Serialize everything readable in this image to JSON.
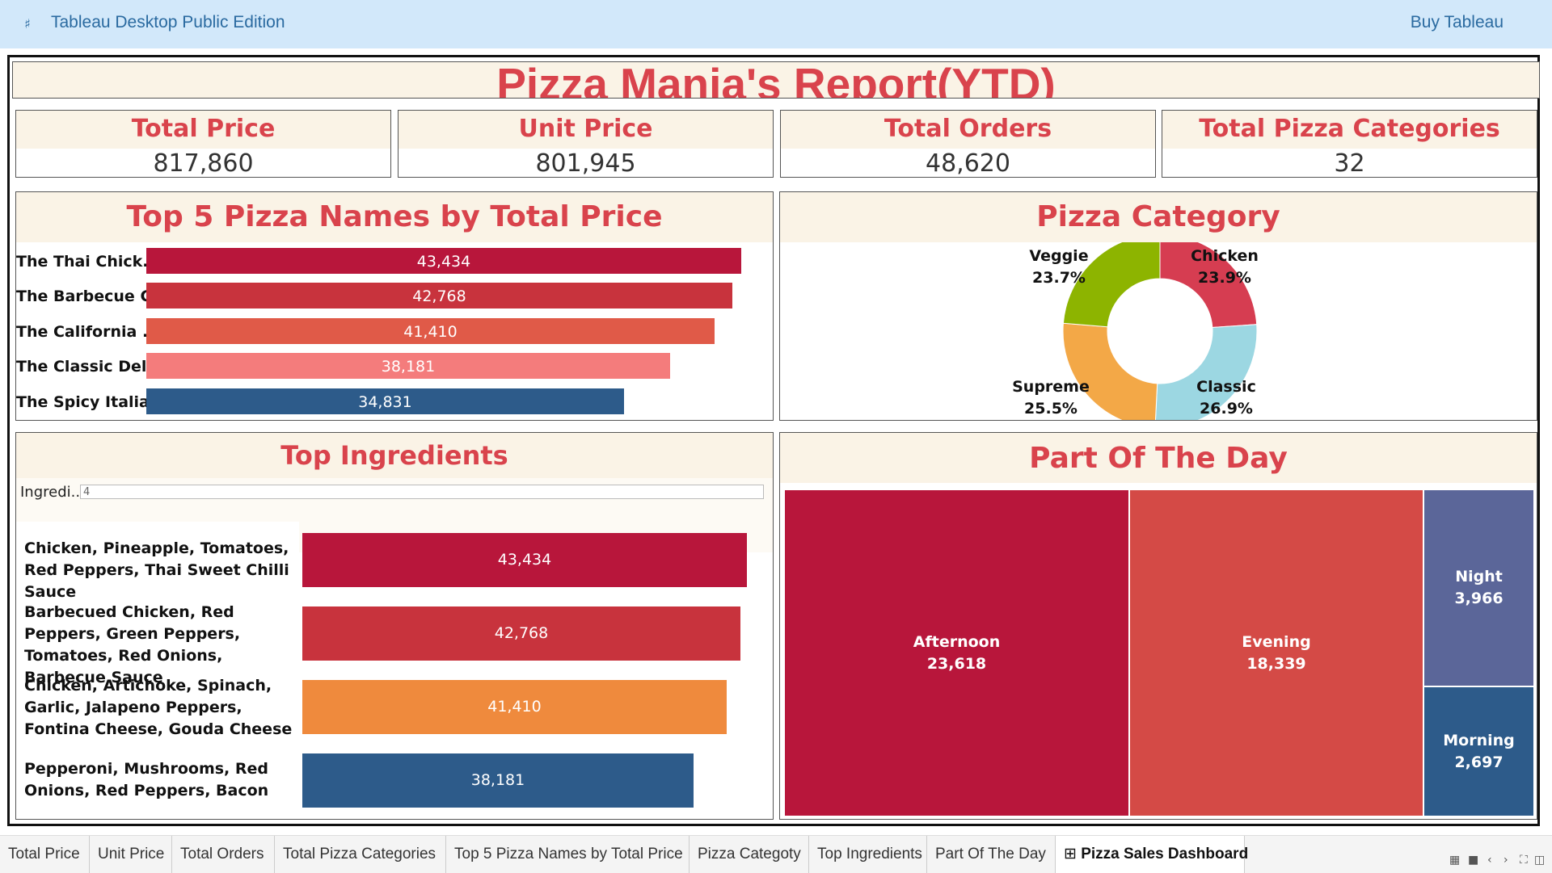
{
  "app": {
    "title": "Tableau Desktop Public Edition",
    "buy": "Buy Tableau"
  },
  "dashboard": {
    "title": "Pizza Mania's Report(YTD)",
    "kpis": [
      {
        "label": "Total Price",
        "value": "817,860"
      },
      {
        "label": "Unit Price",
        "value": "801,945"
      },
      {
        "label": "Total Orders",
        "value": "48,620"
      },
      {
        "label": "Total Pizza Categories",
        "value": "32"
      }
    ],
    "top5": {
      "title": "Top 5 Pizza Names by Total Price",
      "items": [
        {
          "name": "The Thai Chick..",
          "value": "43,434",
          "color": "#b8163b"
        },
        {
          "name": "The Barbecue C..",
          "value": "42,768",
          "color": "#c8333d"
        },
        {
          "name": "The California ..",
          "value": "41,410",
          "color": "#e05a48"
        },
        {
          "name": "The Classic Del..",
          "value": "38,181",
          "color": "#f47c7c"
        },
        {
          "name": "The Spicy Italia..",
          "value": "34,831",
          "color": "#2d5b8a"
        }
      ]
    },
    "category": {
      "title": "Pizza Category",
      "slices": [
        {
          "name": "Chicken",
          "pct": "23.9%",
          "color": "#d63d51"
        },
        {
          "name": "Classic",
          "pct": "26.9%",
          "color": "#9cd7e2"
        },
        {
          "name": "Supreme",
          "pct": "25.5%",
          "color": "#f3a847"
        },
        {
          "name": "Veggie",
          "pct": "23.7%",
          "color": "#8db400"
        }
      ]
    },
    "ingredients": {
      "title": "Top Ingredients",
      "filter_label": "Ingredi..",
      "filter_value": "4",
      "items": [
        {
          "name": "Chicken, Pineapple, Tomatoes, Red Peppers, Thai Sweet Chilli Sauce",
          "value": "43,434",
          "color": "#b8163b"
        },
        {
          "name": "Barbecued Chicken, Red Peppers, Green Peppers, Tomatoes, Red Onions, Barbecue Sauce",
          "value": "42,768",
          "color": "#c8333d"
        },
        {
          "name": "Chicken, Artichoke, Spinach, Garlic, Jalapeno Peppers, Fontina Cheese, Gouda Cheese",
          "value": "41,410",
          "color": "#ef8a3d"
        },
        {
          "name": "Pepperoni, Mushrooms, Red Onions, Red Peppers, Bacon",
          "value": "38,181",
          "color": "#2d5b8a"
        }
      ]
    },
    "part_of_day": {
      "title": "Part Of The Day",
      "tiles": [
        {
          "name": "Afternoon",
          "value": "23,618",
          "color": "#b8163b"
        },
        {
          "name": "Evening",
          "value": "18,339",
          "color": "#d44a46"
        },
        {
          "name": "Night",
          "value": "3,966",
          "color": "#5b6699"
        },
        {
          "name": "Morning",
          "value": "2,697",
          "color": "#2d5b8a"
        }
      ]
    }
  },
  "tabs": [
    {
      "label": "Total Price"
    },
    {
      "label": "Unit Price"
    },
    {
      "label": "Total Orders"
    },
    {
      "label": "Total Pizza Categories"
    },
    {
      "label": "Top 5 Pizza Names by Total Price"
    },
    {
      "label": "Pizza Categoty"
    },
    {
      "label": "Top Ingredients"
    },
    {
      "label": "Part Of The Day"
    },
    {
      "label": "Pizza Sales Dashboard"
    }
  ],
  "nav_icons": [
    "grid-view-icon",
    "filmstrip-icon",
    "prev-sheet-icon",
    "next-sheet-icon",
    "fullscreen-icon",
    "presentation-icon"
  ]
}
